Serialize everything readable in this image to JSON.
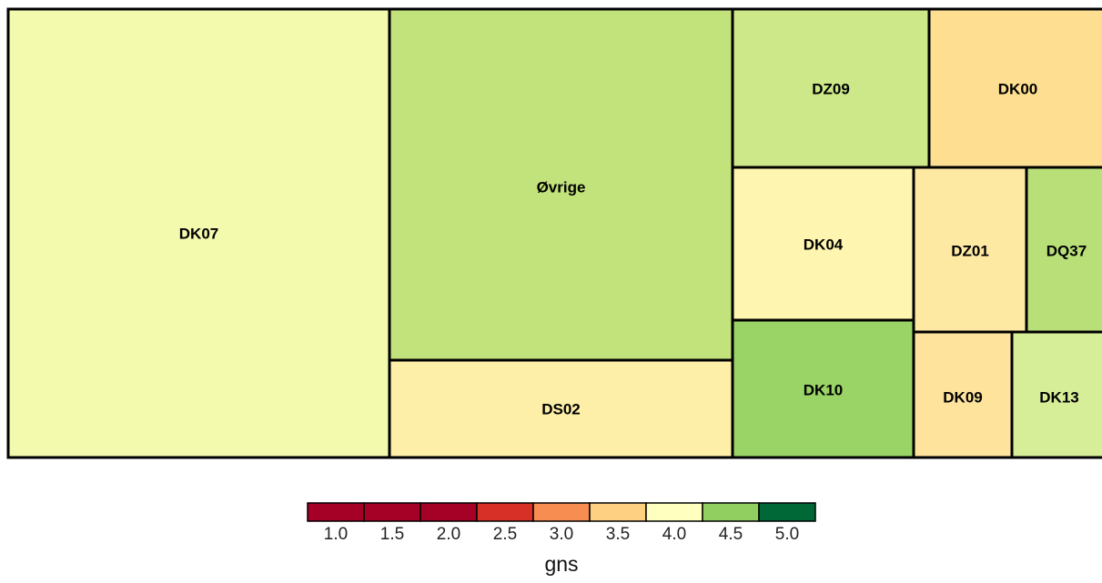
{
  "chart_data": {
    "type": "treemap",
    "items": [
      {
        "label": "DK07",
        "gns": 3.8
      },
      {
        "label": "Øvrige",
        "gns": 4.3
      },
      {
        "label": "DS02",
        "gns": 3.6
      },
      {
        "label": "DZ09",
        "gns": 4.2
      },
      {
        "label": "DK00",
        "gns": 3.4
      },
      {
        "label": "DK04",
        "gns": 3.8
      },
      {
        "label": "DZ01",
        "gns": 3.7
      },
      {
        "label": "DQ37",
        "gns": 4.3
      },
      {
        "label": "DK10",
        "gns": 4.5
      },
      {
        "label": "DK09",
        "gns": 3.5
      },
      {
        "label": "DK13",
        "gns": 4.1
      }
    ],
    "legend": {
      "title": "gns",
      "ticks": [
        "1.0",
        "1.5",
        "2.0",
        "2.5",
        "3.0",
        "3.5",
        "4.0",
        "4.5",
        "5.0"
      ],
      "colors": [
        "#a50026",
        "#a50026",
        "#a50026",
        "#d73027",
        "#f88d52",
        "#fdd181",
        "#ffffbf",
        "#91cf60",
        "#006837"
      ]
    }
  }
}
